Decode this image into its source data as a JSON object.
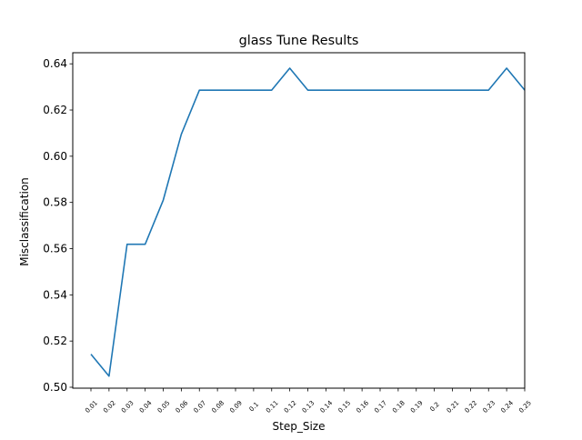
{
  "chart_data": {
    "type": "line",
    "title": "glass Tune Results",
    "xlabel": "Step_Size",
    "ylabel": "Misclassification",
    "categories": [
      "0.01",
      "0.02",
      "0.03",
      "0.04",
      "0.05",
      "0.06",
      "0.07",
      "0.08",
      "0.09",
      "0.1",
      "0.11",
      "0.12",
      "0.13",
      "0.14",
      "0.15",
      "0.16",
      "0.17",
      "0.18",
      "0.19",
      "0.2",
      "0.21",
      "0.22",
      "0.23",
      "0.24",
      "0.25"
    ],
    "series": [
      {
        "values": [
          0.5143,
          0.5048,
          0.5619,
          0.5619,
          0.581,
          0.6095,
          0.6286,
          0.6286,
          0.6286,
          0.6286,
          0.6286,
          0.6381,
          0.6286,
          0.6286,
          0.6286,
          0.6286,
          0.6286,
          0.6286,
          0.6286,
          0.6286,
          0.6286,
          0.6286,
          0.6286,
          0.6381,
          0.6286
        ],
        "color": "#1f77b4"
      }
    ],
    "ylim": [
      0.4996,
      0.6448
    ],
    "yticks": [
      "0.50",
      "0.52",
      "0.54",
      "0.56",
      "0.58",
      "0.60",
      "0.62",
      "0.64"
    ],
    "grid": false,
    "legend": "none"
  }
}
